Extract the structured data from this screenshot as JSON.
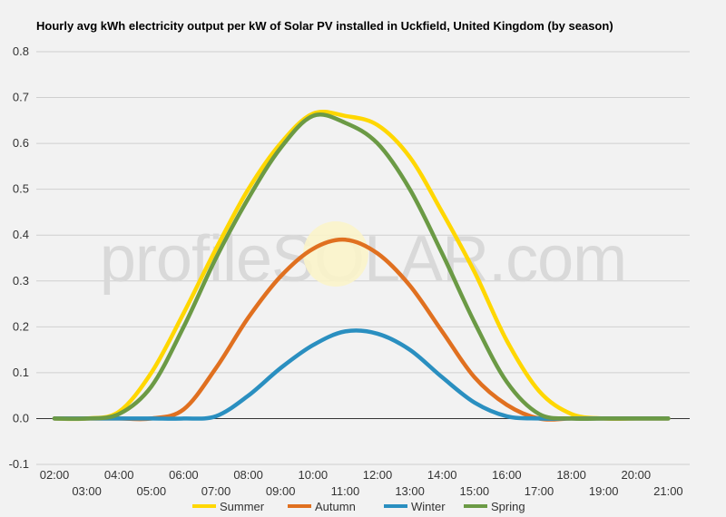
{
  "chart_data": {
    "type": "line",
    "title": "Hourly avg kWh electricity output per kW of Solar PV installed in Uckfield, United Kingdom (by season)",
    "xlabel": "",
    "ylabel": "",
    "ylim": [
      -0.1,
      0.8
    ],
    "yticks": [
      "0.8",
      "0.7",
      "0.6",
      "0.5",
      "0.4",
      "0.3",
      "0.2",
      "0.1",
      "0.0",
      "-0.1"
    ],
    "ytick_values": [
      0.8,
      0.7,
      0.6,
      0.5,
      0.4,
      0.3,
      0.2,
      0.1,
      0.0,
      -0.1
    ],
    "x": [
      "02:00",
      "03:00",
      "04:00",
      "05:00",
      "06:00",
      "07:00",
      "08:00",
      "09:00",
      "10:00",
      "11:00",
      "12:00",
      "13:00",
      "14:00",
      "15:00",
      "16:00",
      "17:00",
      "18:00",
      "19:00",
      "20:00",
      "21:00"
    ],
    "xticks_upper": [
      "02:00",
      "04:00",
      "06:00",
      "08:00",
      "10:00",
      "12:00",
      "14:00",
      "16:00",
      "18:00",
      "20:00"
    ],
    "xticks_lower": [
      "03:00",
      "05:00",
      "07:00",
      "09:00",
      "11:00",
      "13:00",
      "15:00",
      "17:00",
      "19:00",
      "21:00"
    ],
    "grid": true,
    "legend_position": "bottom",
    "watermark": "profileSOLAR.com",
    "series": [
      {
        "name": "Summer",
        "color": "#ffd700",
        "values": [
          0.0,
          0.0,
          0.015,
          0.1,
          0.23,
          0.37,
          0.5,
          0.6,
          0.665,
          0.66,
          0.64,
          0.57,
          0.45,
          0.32,
          0.17,
          0.06,
          0.01,
          0.0,
          0.0,
          0.0
        ]
      },
      {
        "name": "Autumn",
        "color": "#e07020",
        "values": [
          0.0,
          0.0,
          0.0,
          0.0,
          0.02,
          0.11,
          0.22,
          0.31,
          0.37,
          0.39,
          0.36,
          0.29,
          0.19,
          0.09,
          0.03,
          0.0,
          0.0,
          0.0,
          0.0,
          0.0
        ]
      },
      {
        "name": "Winter",
        "color": "#2a8fc0",
        "values": [
          0.0,
          0.0,
          0.0,
          0.0,
          0.0,
          0.005,
          0.05,
          0.11,
          0.16,
          0.19,
          0.185,
          0.15,
          0.09,
          0.035,
          0.005,
          0.0,
          0.0,
          0.0,
          0.0,
          0.0
        ]
      },
      {
        "name": "Spring",
        "color": "#6b9a45",
        "values": [
          0.0,
          0.0,
          0.01,
          0.07,
          0.2,
          0.35,
          0.48,
          0.59,
          0.66,
          0.645,
          0.6,
          0.5,
          0.36,
          0.21,
          0.08,
          0.01,
          0.0,
          0.0,
          0.0,
          0.0
        ]
      }
    ]
  }
}
